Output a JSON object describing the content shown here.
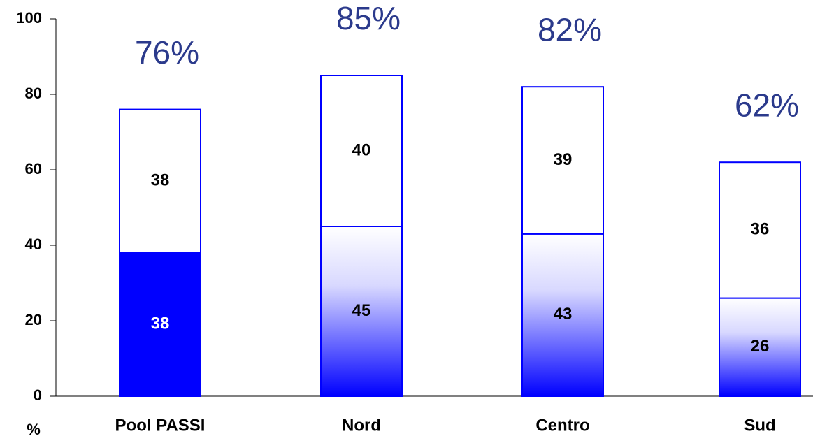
{
  "chart_data": {
    "type": "stacked-bar",
    "categories": [
      "Pool PASSI",
      "Nord",
      "Centro",
      "Sud"
    ],
    "series": [
      {
        "color": "#0000ff",
        "fill_styles": [
          "solid",
          "gradient",
          "gradient",
          "gradient"
        ],
        "values": [
          38,
          45,
          43,
          26
        ]
      },
      {
        "color": "#ffffff",
        "values": [
          38,
          40,
          39,
          36
        ]
      }
    ],
    "totals": {
      "values": [
        76,
        85,
        82,
        62
      ],
      "value_labels": [
        "76%",
        "85%",
        "82%",
        "62%"
      ]
    },
    "y_label": "%",
    "ylim": [
      0,
      100
    ],
    "yticks": [
      0,
      20,
      40,
      60,
      80,
      100
    ]
  }
}
